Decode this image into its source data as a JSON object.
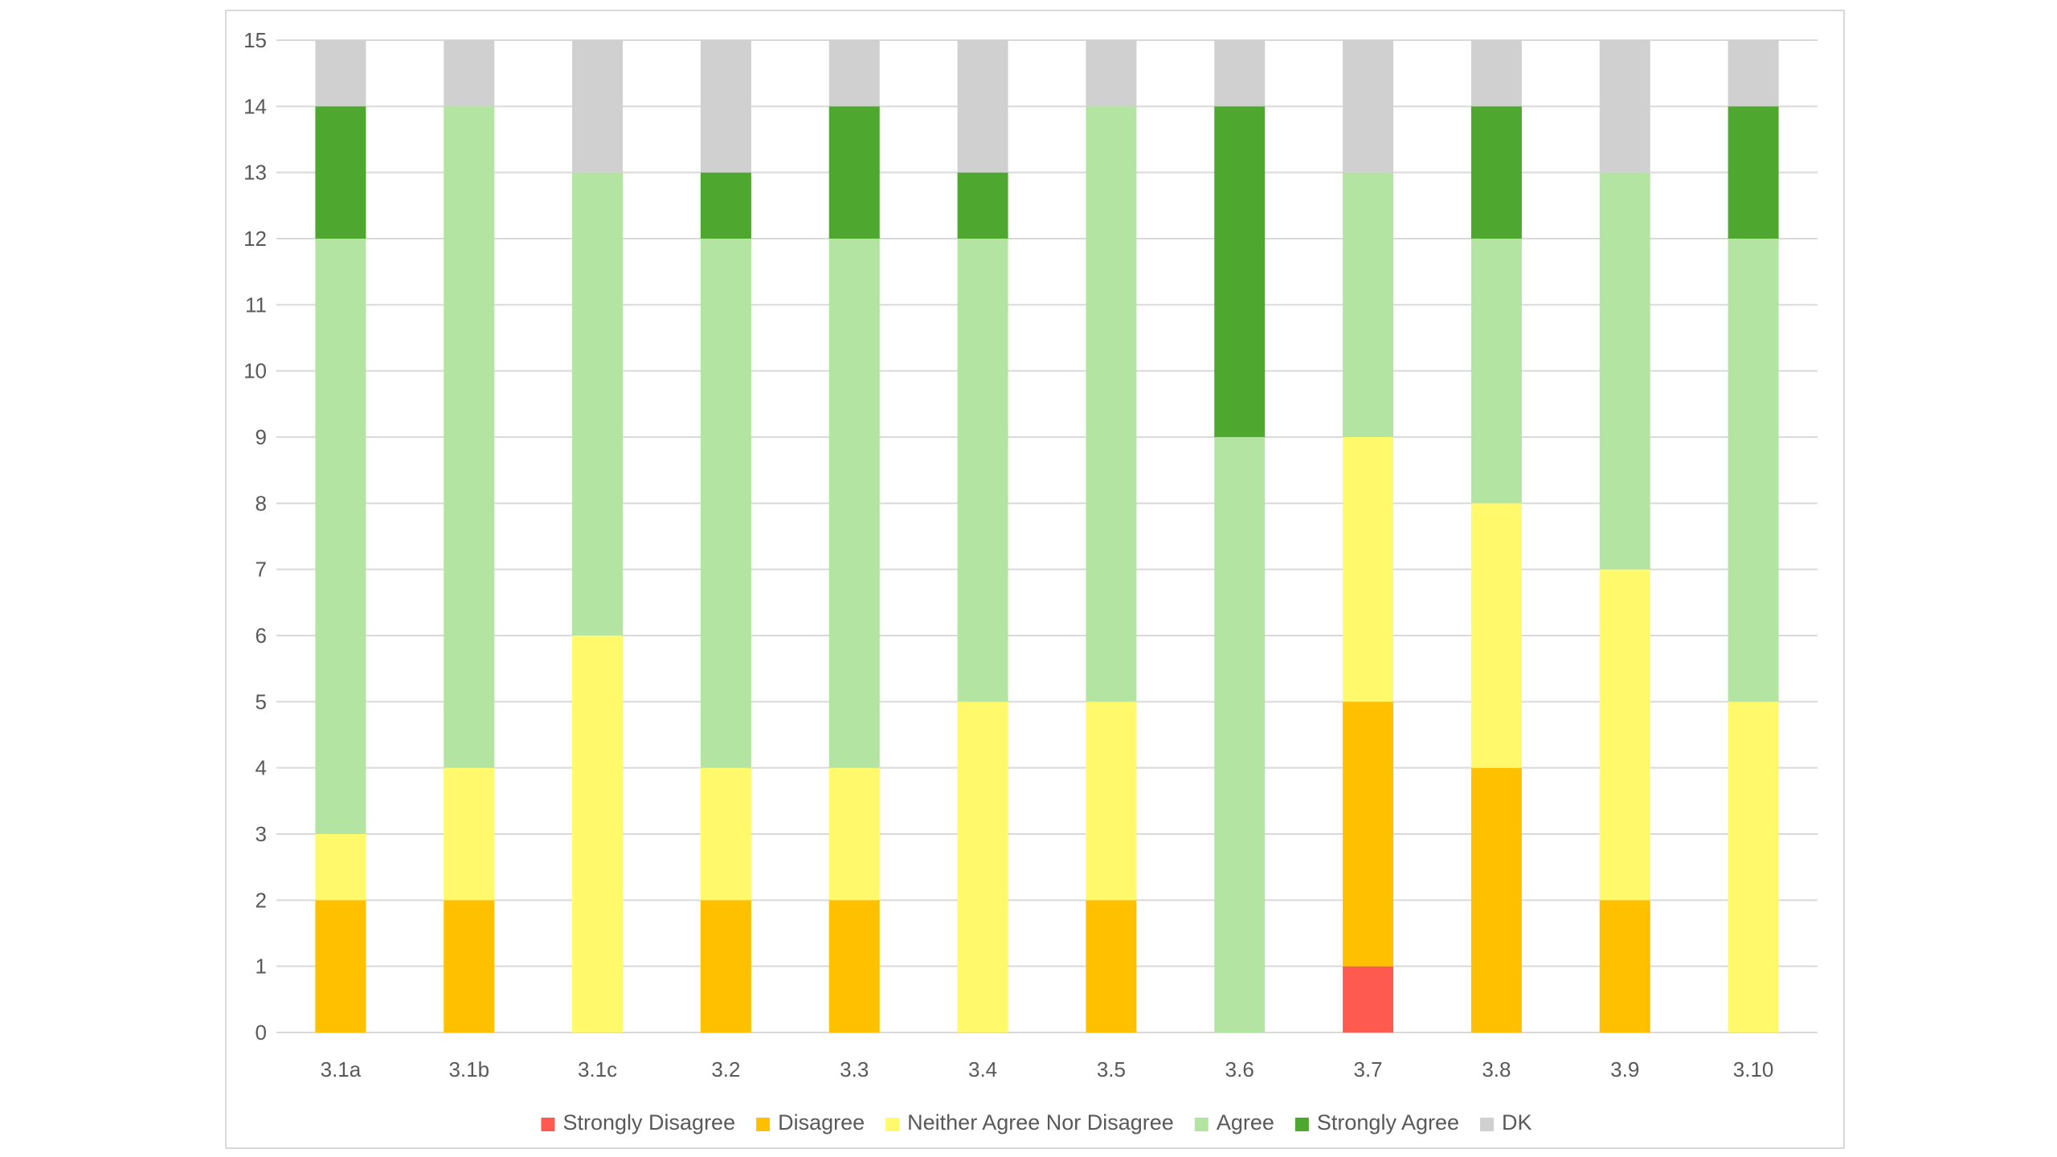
{
  "chart_data": {
    "type": "bar",
    "stacked": true,
    "categories": [
      "3.1a",
      "3.1b",
      "3.1c",
      "3.2",
      "3.3",
      "3.4",
      "3.5",
      "3.6",
      "3.7",
      "3.8",
      "3.9",
      "3.10"
    ],
    "series": [
      {
        "name": "Strongly Disagree",
        "color": "#ff5a4f",
        "values": [
          0,
          0,
          0,
          0,
          0,
          0,
          0,
          0,
          1,
          0,
          0,
          0
        ]
      },
      {
        "name": "Disagree",
        "color": "#ffc000",
        "values": [
          2,
          2,
          0,
          2,
          2,
          0,
          2,
          0,
          4,
          4,
          2,
          0
        ]
      },
      {
        "name": "Neither Agree Nor Disagree",
        "color": "#fff96b",
        "values": [
          1,
          2,
          6,
          2,
          2,
          5,
          3,
          0,
          4,
          4,
          5,
          5
        ]
      },
      {
        "name": "Agree",
        "color": "#b4e4a2",
        "values": [
          9,
          10,
          7,
          8,
          8,
          7,
          9,
          9,
          4,
          4,
          6,
          7
        ]
      },
      {
        "name": "Strongly Agree",
        "color": "#4ea72e",
        "values": [
          2,
          0,
          0,
          1,
          2,
          1,
          0,
          5,
          0,
          2,
          0,
          2
        ]
      },
      {
        "name": "DK",
        "color": "#d0d0d0",
        "values": [
          1,
          1,
          2,
          2,
          1,
          2,
          1,
          1,
          2,
          1,
          2,
          1
        ]
      }
    ],
    "yticks": [
      "0",
      "1",
      "2",
      "3",
      "4",
      "5",
      "6",
      "7",
      "8",
      "9",
      "10",
      "11",
      "12",
      "13",
      "14",
      "15"
    ],
    "ylim": [
      0,
      15
    ],
    "grid": true,
    "legend_position": "bottom",
    "gridline_color": "#d9d9d9",
    "axis_label_color": "#595959"
  }
}
